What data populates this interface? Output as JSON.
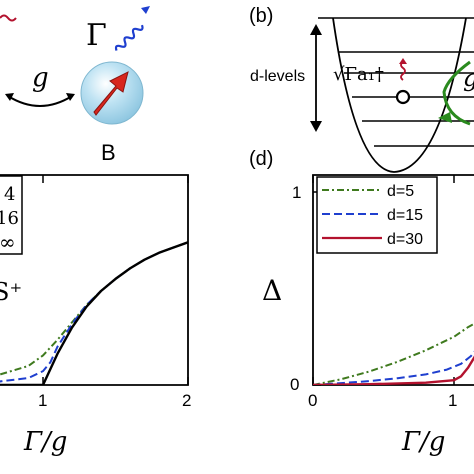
{
  "top_left": {
    "label_gamma": "Γ",
    "label_g": "g",
    "label_B": "B"
  },
  "panel_b": {
    "label": "(b)",
    "levels_label": "d-levels",
    "operator_label": "√Γa₁†",
    "partial_label": "g"
  },
  "panel_c": {
    "legend_entries": [
      "4",
      "16",
      "∞"
    ],
    "annotation": "S⁺",
    "x_tick_labels": [
      "1",
      "2"
    ],
    "xlabel": "Γ/g"
  },
  "panel_d": {
    "label": "(d)",
    "ylabel": "Δ",
    "y_tick_labels": [
      "0",
      "1"
    ],
    "x_tick_labels": [
      "0",
      "1"
    ],
    "xlabel": "Γ/g",
    "legend_entries": [
      "d=5",
      "d=15",
      "d=30"
    ]
  },
  "colors": {
    "green": "#3f7a1e",
    "blue": "#1f3fcf",
    "red": "#b3122e",
    "black": "#000000",
    "sphere": "#bfe3f3",
    "arrow": "#d8261d"
  },
  "chart_data": [
    {
      "type": "line",
      "panel": "c",
      "xlabel": "Γ/g",
      "xlim": [
        0.5,
        2
      ],
      "x_ticks": [
        1,
        2
      ],
      "series": [
        {
          "name": "4",
          "style": "dash-dot",
          "color": "#3f7a1e",
          "x": [
            0.5,
            0.7,
            0.9,
            1.0,
            1.1,
            1.2,
            1.3,
            1.4,
            1.5,
            1.6,
            1.7,
            1.8,
            1.9,
            2.0
          ],
          "y": [
            0.04,
            0.06,
            0.11,
            0.17,
            0.26,
            0.36,
            0.46,
            0.54,
            0.61,
            0.67,
            0.72,
            0.76,
            0.79,
            0.82
          ]
        },
        {
          "name": "16",
          "style": "dashed",
          "color": "#1f3fcf",
          "x": [
            0.5,
            0.7,
            0.9,
            1.0,
            1.05,
            1.1,
            1.2,
            1.3,
            1.4,
            1.5,
            1.6,
            1.7,
            1.8,
            1.9,
            2.0
          ],
          "y": [
            0.01,
            0.02,
            0.04,
            0.08,
            0.13,
            0.22,
            0.35,
            0.46,
            0.54,
            0.61,
            0.67,
            0.72,
            0.76,
            0.79,
            0.82
          ]
        },
        {
          "name": "∞",
          "style": "solid",
          "color": "#000000",
          "x": [
            0.5,
            1.0,
            1.05,
            1.1,
            1.2,
            1.3,
            1.4,
            1.5,
            1.6,
            1.7,
            1.8,
            1.9,
            2.0
          ],
          "y": [
            0.0,
            0.0,
            0.09,
            0.18,
            0.33,
            0.45,
            0.54,
            0.61,
            0.67,
            0.72,
            0.76,
            0.79,
            0.82
          ]
        }
      ]
    },
    {
      "type": "line",
      "panel": "d",
      "xlabel": "Γ/g",
      "ylabel": "Δ",
      "xlim": [
        0,
        1.2
      ],
      "ylim": [
        -0.05,
        1.15
      ],
      "x_ticks": [
        0,
        1
      ],
      "y_ticks": [
        0,
        1
      ],
      "series": [
        {
          "name": "d=5",
          "style": "dash-dot",
          "color": "#3f7a1e",
          "x": [
            0,
            0.2,
            0.4,
            0.6,
            0.8,
            1.0,
            1.1,
            1.2
          ],
          "y": [
            0.0,
            0.03,
            0.07,
            0.12,
            0.18,
            0.25,
            0.3,
            0.34
          ]
        },
        {
          "name": "d=15",
          "style": "dashed",
          "color": "#1f3fcf",
          "x": [
            0,
            0.2,
            0.4,
            0.6,
            0.8,
            0.95,
            1.05,
            1.12,
            1.2
          ],
          "y": [
            0.0,
            0.01,
            0.02,
            0.035,
            0.055,
            0.08,
            0.11,
            0.15,
            0.22
          ]
        },
        {
          "name": "d=30",
          "style": "solid",
          "color": "#b3122e",
          "x": [
            0,
            0.4,
            0.8,
            1.0,
            1.05,
            1.1,
            1.15,
            1.2
          ],
          "y": [
            0.0,
            0.004,
            0.012,
            0.025,
            0.045,
            0.09,
            0.15,
            0.22
          ]
        }
      ]
    }
  ]
}
